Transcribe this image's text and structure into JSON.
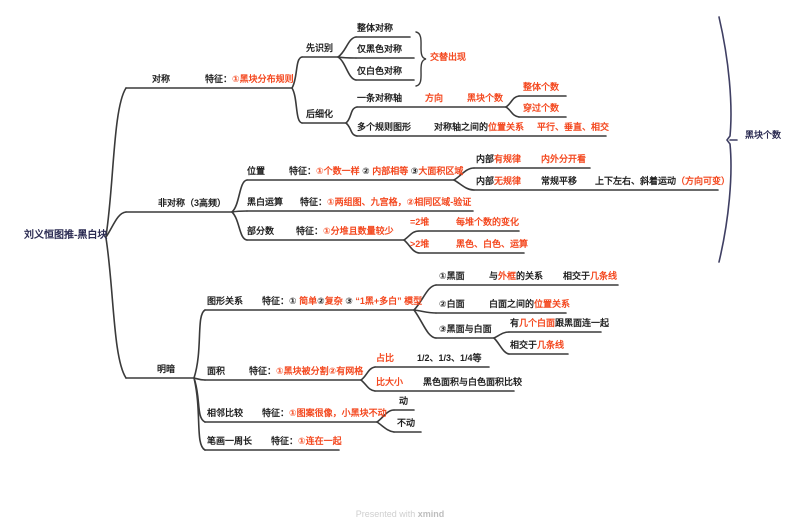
{
  "root": {
    "title": "刘义恒图推-黑白块"
  },
  "footer": {
    "prefix": "Presented with ",
    "brand": "xmind"
  },
  "colors": {
    "highlight": "#f4481f",
    "text": "#1f1f1f",
    "root": "#2b2b52",
    "line": "#3a3a3a",
    "bracket": "#3f3f63"
  },
  "labels": {
    "duicheng": [
      {
        "t": "对称",
        "c": "dark"
      }
    ],
    "duicheng_feature": [
      {
        "t": "特征：",
        "c": "dark"
      },
      {
        "t": "①黑块分布规则",
        "c": "red"
      }
    ],
    "xianshibie": [
      {
        "t": "先识别",
        "c": "dark"
      }
    ],
    "zhengti_duicheng": [
      {
        "t": "整体对称",
        "c": "dark"
      }
    ],
    "jin_heise": [
      {
        "t": "仅黑色对称",
        "c": "dark"
      }
    ],
    "jin_baise": [
      {
        "t": "仅白色对称",
        "c": "dark"
      }
    ],
    "jiaoti": [
      {
        "t": "交替出现",
        "c": "red"
      }
    ],
    "houxihua": [
      {
        "t": "后细化",
        "c": "dark"
      }
    ],
    "yitiao": [
      {
        "t": "一条对称轴",
        "c": "dark"
      }
    ],
    "fangxiang": [
      {
        "t": "方向",
        "c": "red"
      }
    ],
    "heikuai_mid": [
      {
        "t": "黑块个数",
        "c": "red"
      }
    ],
    "zhengti_geshu": [
      {
        "t": "整体个数",
        "c": "red"
      }
    ],
    "chuanguo_geshu": [
      {
        "t": "穿过个数",
        "c": "red"
      }
    ],
    "duoge": [
      {
        "t": "多个规则图形",
        "c": "dark"
      }
    ],
    "duichengzhou": [
      {
        "t": "对称轴之间的",
        "c": "dark"
      },
      {
        "t": "位置关系",
        "c": "red"
      }
    ],
    "pingxing": [
      {
        "t": "平行、垂直、相交",
        "c": "red"
      }
    ],
    "heikuai_right": [
      {
        "t": "黑块个数",
        "c": "navy"
      }
    ],
    "feiduicheng": [
      {
        "t": "非对称（3高频）",
        "c": "dark"
      }
    ],
    "weizhi": [
      {
        "t": "位置",
        "c": "dark"
      }
    ],
    "weizhi_feature": [
      {
        "t": "特征：",
        "c": "dark"
      },
      {
        "t": "①个数一样",
        "c": "red"
      },
      {
        "t": " ② ",
        "c": "dark"
      },
      {
        "t": "内部相等",
        "c": "red"
      },
      {
        "t": " ③",
        "c": "dark"
      },
      {
        "t": "大面积区域",
        "c": "red"
      }
    ],
    "neibu_you": [
      {
        "t": "内部",
        "c": "dark"
      },
      {
        "t": "有规律",
        "c": "red"
      }
    ],
    "neiwai": [
      {
        "t": "内外分开看",
        "c": "red"
      }
    ],
    "neibu_wu": [
      {
        "t": "内部",
        "c": "dark"
      },
      {
        "t": "无规律",
        "c": "red"
      }
    ],
    "changgui": [
      {
        "t": "常规平移",
        "c": "dark"
      }
    ],
    "shangxia": [
      {
        "t": "上下左右、斜着运动",
        "c": "dark"
      },
      {
        "t": "（方向可变）",
        "c": "red"
      }
    ],
    "heibai": [
      {
        "t": "黑白运算",
        "c": "dark"
      }
    ],
    "heibai_feature": [
      {
        "t": "特征：",
        "c": "dark"
      },
      {
        "t": "①两组图、九宫格，②相同区域-验证",
        "c": "red"
      }
    ],
    "bufenshu": [
      {
        "t": "部分数",
        "c": "dark"
      }
    ],
    "bufenshu_feature": [
      {
        "t": "特征：",
        "c": "dark"
      },
      {
        "t": "①分堆且数量较少",
        "c": "red"
      }
    ],
    "eq2": [
      {
        "t": "=2堆",
        "c": "red"
      }
    ],
    "meidui": [
      {
        "t": "每堆个数的变化",
        "c": "red"
      }
    ],
    "gt2": [
      {
        "t": ">2堆",
        "c": "red"
      }
    ],
    "heise_baise": [
      {
        "t": "黑色、白色、运算",
        "c": "red"
      }
    ],
    "mingan": [
      {
        "t": "明暗",
        "c": "dark"
      }
    ],
    "tuxing": [
      {
        "t": "图形关系",
        "c": "dark"
      }
    ],
    "tuxing_feature": [
      {
        "t": "特征：① ",
        "c": "dark"
      },
      {
        "t": "简单",
        "c": "red"
      },
      {
        "t": "②",
        "c": "dark"
      },
      {
        "t": "复杂",
        "c": "red"
      },
      {
        "t": " ③ ",
        "c": "dark"
      },
      {
        "t": "“1黑+多白” 模型",
        "c": "red"
      }
    ],
    "heimian": [
      {
        "t": "①黑面",
        "c": "dark"
      }
    ],
    "waikuang": [
      {
        "t": "与",
        "c": "dark"
      },
      {
        "t": "外框",
        "c": "red"
      },
      {
        "t": "的关系",
        "c": "dark"
      }
    ],
    "xiangjiao1": [
      {
        "t": "相交于",
        "c": "dark"
      },
      {
        "t": "几条线",
        "c": "red"
      }
    ],
    "baimian": [
      {
        "t": "②白面",
        "c": "dark"
      }
    ],
    "baimian_rel": [
      {
        "t": "白面之间的",
        "c": "dark"
      },
      {
        "t": "位置关系",
        "c": "red"
      }
    ],
    "heibaimian": [
      {
        "t": "③黑面与白面",
        "c": "dark"
      }
    ],
    "jige_baimian": [
      {
        "t": "有",
        "c": "dark"
      },
      {
        "t": "几个白面",
        "c": "red"
      },
      {
        "t": "跟黑面连一起",
        "c": "dark"
      }
    ],
    "xiangjiao2": [
      {
        "t": "相交于",
        "c": "dark"
      },
      {
        "t": "几条线",
        "c": "red"
      }
    ],
    "mianji": [
      {
        "t": "面积",
        "c": "dark"
      }
    ],
    "mianji_feature": [
      {
        "t": "特征：",
        "c": "dark"
      },
      {
        "t": "①黑块被分割②有网格",
        "c": "red"
      }
    ],
    "zhanbi": [
      {
        "t": "占比",
        "c": "red"
      }
    ],
    "fractions": [
      {
        "t": "1/2、1/3、1/4等",
        "c": "dark"
      }
    ],
    "bidaxiao": [
      {
        "t": "比大小",
        "c": "red"
      }
    ],
    "heise_mianji": [
      {
        "t": "黑色面积与白色面积比较",
        "c": "dark"
      }
    ],
    "xianglin": [
      {
        "t": "相邻比较",
        "c": "dark"
      }
    ],
    "xianglin_feature": [
      {
        "t": "特征：",
        "c": "dark"
      },
      {
        "t": "①图案很像，小黑块不动",
        "c": "red"
      }
    ],
    "dong": [
      {
        "t": "动",
        "c": "dark"
      }
    ],
    "budong": [
      {
        "t": "不动",
        "c": "dark"
      }
    ],
    "bihua": [
      {
        "t": "笔画一周长",
        "c": "dark"
      }
    ],
    "bihua_feature": [
      {
        "t": "特征：",
        "c": "dark"
      },
      {
        "t": "①连在一起",
        "c": "red"
      }
    ]
  }
}
